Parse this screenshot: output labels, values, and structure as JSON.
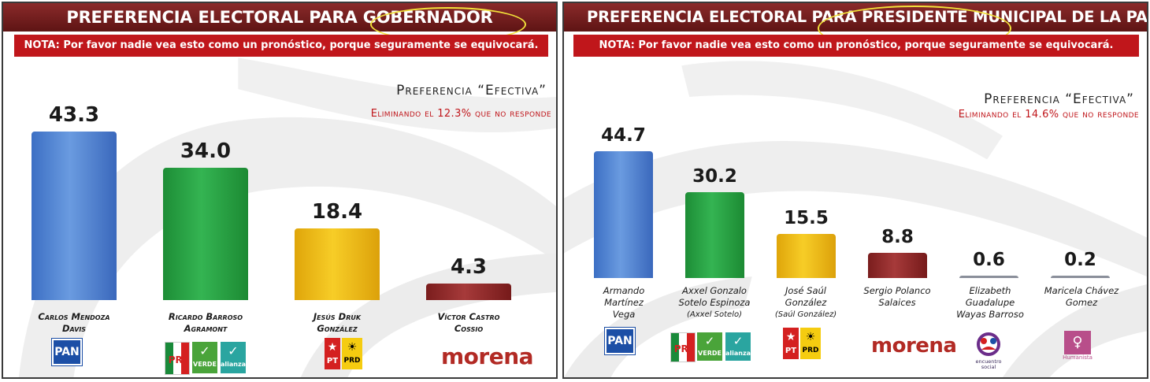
{
  "colors": {
    "title_bar": "#6e1c1c",
    "note_bar": "#c0161b",
    "highlight": "#f2e23a",
    "pan_blue": "#3c6fc4",
    "pri_alliance_green": "#2fa84a",
    "pt_prd_yellow": "#f5c21b",
    "morena_maroon": "#8c2626",
    "minor_gray": "#8a8f9a"
  },
  "left": {
    "title": "PREFERENCIA ELECTORAL PARA GOBERNADOR",
    "note": "NOTA: Por favor nadie vea esto como un pronóstico, porque seguramente se equivocará.",
    "pref_title": "Preferencia “Efectiva”",
    "pref_sub": "Eliminando el 12.3% que no responde",
    "candidates": [
      {
        "name_line1": "Carlos Mendoza",
        "name_line2": "Davis",
        "logo": "pan-logo",
        "pan": "PAN"
      },
      {
        "name_line1": "Ricardo Barroso",
        "name_line2": "Agramont",
        "logo": "pri-verde-alianza-logos",
        "verde": "VERDE",
        "alianza": "alianza"
      },
      {
        "name_line1": "Jesús Druk",
        "name_line2": "González",
        "logo": "pt-prd-logos",
        "pt": "PT",
        "prd": "PRD"
      },
      {
        "name_line1": "Víctor Castro",
        "name_line2": "Cossio",
        "logo": "morena-logo",
        "morena": "morena"
      }
    ]
  },
  "right": {
    "title": "PREFERENCIA ELECTORAL PARA PRESIDENTE MUNICIPAL DE LA PAZ",
    "note": "NOTA: Por favor nadie vea esto como un pronóstico, porque seguramente se equivocará.",
    "pref_title": "Preferencia “Efectiva”",
    "pref_sub": "Eliminando el 14.6% que no responde",
    "candidates": [
      {
        "name_line1": "Armando",
        "name_line2": "Martínez",
        "name_line3": "Vega",
        "sub": "",
        "logo": "pan-logo",
        "pan": "PAN"
      },
      {
        "name_line1": "Axxel Gonzalo",
        "name_line2": "Sotelo Espinoza",
        "name_line3": "",
        "sub": "(Axxel Sotelo)",
        "logo": "pri-verde-alianza-logos",
        "verde": "VERDE",
        "alianza": "alianza"
      },
      {
        "name_line1": "José Saúl",
        "name_line2": "González",
        "name_line3": "",
        "sub": "(Saúl González)",
        "logo": "pt-prd-logos",
        "pt": "PT",
        "prd": "PRD"
      },
      {
        "name_line1": "Sergio Polanco",
        "name_line2": "Salaices",
        "name_line3": "",
        "sub": "",
        "logo": "morena-logo",
        "morena": "morena"
      },
      {
        "name_line1": "Elizabeth",
        "name_line2": "Guadalupe",
        "name_line3": "Wayas Barroso",
        "sub": "",
        "logo": "encuentro-social-logo",
        "logo_text": "encuentro social"
      },
      {
        "name_line1": "Maricela Chávez",
        "name_line2": "Gomez",
        "name_line3": "",
        "sub": "",
        "logo": "humanista-logo",
        "logo_text": "Humanista"
      }
    ]
  },
  "chart_data": [
    {
      "type": "bar",
      "title": "PREFERENCIA ELECTORAL PARA GOBERNADOR",
      "categories": [
        "Carlos Mendoza Davis",
        "Ricardo Barroso Agramont",
        "Jesús Druk González",
        "Víctor Castro Cossio"
      ],
      "values": [
        43.3,
        34.0,
        18.4,
        4.3
      ],
      "value_labels": [
        "43.3",
        "34.0",
        "18.4",
        "4.3"
      ],
      "ylim": [
        0,
        50
      ],
      "grid": false,
      "legend": "none"
    },
    {
      "type": "bar",
      "title": "PREFERENCIA ELECTORAL PARA PRESIDENTE MUNICIPAL DE LA PAZ",
      "categories": [
        "Armando Martínez Vega",
        "Axxel Gonzalo Sotelo Espinoza",
        "José Saúl González",
        "Sergio Polanco Salaices",
        "Elizabeth Guadalupe Wayas Barroso",
        "Maricela Chávez Gomez"
      ],
      "values": [
        44.7,
        30.2,
        15.5,
        8.8,
        0.6,
        0.2
      ],
      "value_labels": [
        "44.7",
        "30.2",
        "15.5",
        "8.8",
        "0.6",
        "0.2"
      ],
      "ylim": [
        0,
        50
      ],
      "grid": false,
      "legend": "none"
    }
  ]
}
